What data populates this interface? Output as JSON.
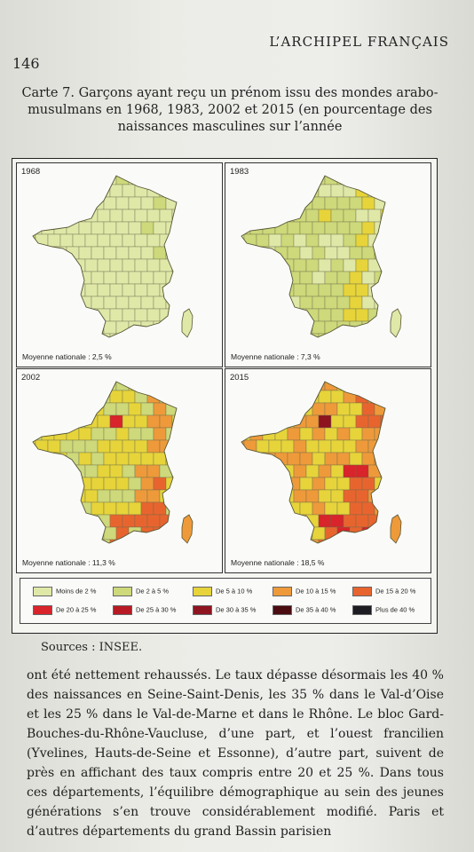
{
  "running_head": "L’ARCHIPEL FRANÇAIS",
  "page_number": "146",
  "caption": "Carte 7. Garçons ayant reçu un prénom issu des mondes arabo-musulmans en 1968, 1983, 2002 et 2015 (en pourcentage des naissances masculines sur l’année",
  "maps": [
    {
      "year": "1968",
      "average": "Moyenne nationale : 2,5 %"
    },
    {
      "year": "1983",
      "average": "Moyenne nationale : 7,3 %"
    },
    {
      "year": "2002",
      "average": "Moyenne nationale : 11,3 %"
    },
    {
      "year": "2015",
      "average": "Moyenne nationale : 18,5 %"
    }
  ],
  "legend": [
    {
      "label": "Moins de 2 %",
      "color": "#e0e8a8"
    },
    {
      "label": "De 2 à 5 %",
      "color": "#cdd97a"
    },
    {
      "label": "De 5 à 10 %",
      "color": "#e6d43a"
    },
    {
      "label": "De 10 à 15 %",
      "color": "#ee9a3a"
    },
    {
      "label": "De 15 à 20 %",
      "color": "#e8642e"
    },
    {
      "label": "De 20 à 25 %",
      "color": "#d8242a"
    },
    {
      "label": "De 25 à 30 %",
      "color": "#b81a24"
    },
    {
      "label": "De 30 à 35 %",
      "color": "#8e1420"
    },
    {
      "label": "De 35 à 40 %",
      "color": "#4a0c10"
    },
    {
      "label": "Plus de 40 %",
      "color": "#1c1c22"
    }
  ],
  "sources": "Sources : INSEE.",
  "body_text": "ont été nettement rehaussés. Le taux dépasse désormais les 40 % des naissances en Seine-Saint-Denis, les 35 % dans le Val-d’Oise et les 25 % dans le Val-de-Marne et dans le Rhône. Le bloc Gard-Bouches-du-Rhône-Vaucluse, d’une part, et l’ouest francilien (Yvelines, Hauts-de-Seine et Essonne), d’autre part, suivent de près en affichant des taux compris entre 20 et 25 %. Dans tous ces départements, l’équilibre démographique au sein des jeunes générations s’en trouve considérablement modifié. Paris et d’autres départements du grand Bassin parisien"
}
